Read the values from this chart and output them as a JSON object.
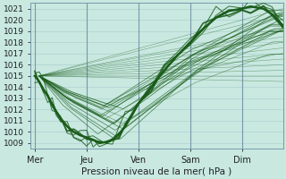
{
  "background_color": "#c8e8e0",
  "grid_color": "#a8cccc",
  "line_color": "#1a5c1a",
  "ylim": [
    1008.5,
    1021.5
  ],
  "yticks": [
    1009,
    1010,
    1011,
    1012,
    1013,
    1014,
    1015,
    1016,
    1017,
    1018,
    1019,
    1020,
    1021
  ],
  "xlabel": "Pression niveau de la mer( hPa )",
  "xtick_labels": [
    "Mer",
    "Jeu",
    "Ven",
    "Sam",
    "Dim"
  ],
  "xtick_positions": [
    0,
    24,
    48,
    72,
    96
  ],
  "xlim": [
    -2,
    115
  ],
  "figsize": [
    3.2,
    2.0
  ],
  "dpi": 100,
  "conv_t": 2,
  "conv_p": 1015.0,
  "straight_endpoints": [
    [
      115,
      1019.0
    ],
    [
      115,
      1019.3
    ],
    [
      115,
      1018.5
    ],
    [
      115,
      1018.0
    ],
    [
      115,
      1017.5
    ],
    [
      115,
      1017.0
    ],
    [
      115,
      1016.5
    ],
    [
      115,
      1016.0
    ],
    [
      115,
      1015.5
    ],
    [
      115,
      1015.0
    ],
    [
      115,
      1014.5
    ],
    [
      115,
      1021.0
    ],
    [
      115,
      1020.5
    ]
  ],
  "main_t": [
    0,
    2,
    4,
    6,
    8,
    10,
    12,
    15,
    18,
    21,
    24,
    27,
    30,
    33,
    36,
    39,
    42,
    45,
    48,
    54,
    60,
    66,
    72,
    78,
    84,
    90,
    96,
    100,
    106,
    110,
    115
  ],
  "main_p": [
    1015.0,
    1014.5,
    1013.8,
    1013.2,
    1012.5,
    1011.8,
    1011.2,
    1010.5,
    1010.0,
    1009.7,
    1009.5,
    1009.3,
    1009.0,
    1009.1,
    1009.3,
    1009.8,
    1010.5,
    1011.5,
    1012.5,
    1014.0,
    1015.5,
    1016.8,
    1018.0,
    1019.2,
    1020.2,
    1020.8,
    1021.0,
    1021.2,
    1021.0,
    1020.5,
    1019.5
  ]
}
